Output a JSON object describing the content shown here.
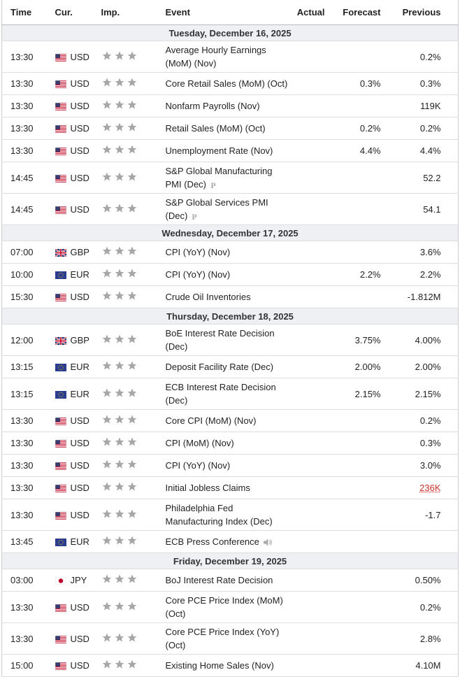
{
  "header": {
    "columns": [
      "Time",
      "Cur.",
      "Imp.",
      "Event",
      "Actual",
      "Forecast",
      "Previous"
    ]
  },
  "sections": [
    {
      "date": "Tuesday, December 16, 2025",
      "rows": [
        {
          "time": "13:30",
          "currency": "USD",
          "event": "Average Hourly Earnings (MoM) (Nov)",
          "actual": null,
          "forecast": null,
          "previous": "0.2%"
        },
        {
          "time": "13:30",
          "currency": "USD",
          "event": "Core Retail Sales (MoM) (Oct)",
          "actual": null,
          "forecast": "0.3%",
          "previous": "0.3%"
        },
        {
          "time": "13:30",
          "currency": "USD",
          "event": "Nonfarm Payrolls (Nov)",
          "actual": null,
          "forecast": null,
          "previous": "119K"
        },
        {
          "time": "13:30",
          "currency": "USD",
          "event": "Retail Sales (MoM) (Oct)",
          "actual": null,
          "forecast": "0.2%",
          "previous": "0.2%"
        },
        {
          "time": "13:30",
          "currency": "USD",
          "event": "Unemployment Rate (Nov)",
          "actual": null,
          "forecast": "4.4%",
          "previous": "4.4%"
        },
        {
          "time": "14:45",
          "currency": "USD",
          "event": "S&P Global Manufacturing PMI (Dec)",
          "actual": null,
          "forecast": null,
          "previous": "52.2",
          "preliminary": true
        },
        {
          "time": "14:45",
          "currency": "USD",
          "event": "S&P Global Services PMI (Dec)",
          "actual": null,
          "forecast": null,
          "previous": "54.1",
          "preliminary": true
        }
      ]
    },
    {
      "date": "Wednesday, December 17, 2025",
      "rows": [
        {
          "time": "07:00",
          "currency": "GBP",
          "event": "CPI (YoY) (Nov)",
          "actual": null,
          "forecast": null,
          "previous": "3.6%"
        },
        {
          "time": "10:00",
          "currency": "EUR",
          "event": "CPI (YoY) (Nov)",
          "actual": null,
          "forecast": "2.2%",
          "previous": "2.2%"
        },
        {
          "time": "15:30",
          "currency": "USD",
          "event": "Crude Oil Inventories",
          "actual": null,
          "forecast": null,
          "previous": "-1.812M"
        }
      ]
    },
    {
      "date": "Thursday, December 18, 2025",
      "rows": [
        {
          "time": "12:00",
          "currency": "GBP",
          "event": "BoE Interest Rate Decision (Dec)",
          "actual": null,
          "forecast": "3.75%",
          "previous": "4.00%"
        },
        {
          "time": "13:15",
          "currency": "EUR",
          "event": "Deposit Facility Rate (Dec)",
          "actual": null,
          "forecast": "2.00%",
          "previous": "2.00%"
        },
        {
          "time": "13:15",
          "currency": "EUR",
          "event": "ECB Interest Rate Decision (Dec)",
          "actual": null,
          "forecast": "2.15%",
          "previous": "2.15%"
        },
        {
          "time": "13:30",
          "currency": "USD",
          "event": "Core CPI (MoM) (Nov)",
          "actual": null,
          "forecast": null,
          "previous": "0.2%"
        },
        {
          "time": "13:30",
          "currency": "USD",
          "event": "CPI (MoM) (Nov)",
          "actual": null,
          "forecast": null,
          "previous": "0.3%"
        },
        {
          "time": "13:30",
          "currency": "USD",
          "event": "CPI (YoY) (Nov)",
          "actual": null,
          "forecast": null,
          "previous": "3.0%"
        },
        {
          "time": "13:30",
          "currency": "USD",
          "event": "Initial Jobless Claims",
          "actual": null,
          "forecast": null,
          "previous": "236K",
          "revised": true
        },
        {
          "time": "13:30",
          "currency": "USD",
          "event": "Philadelphia Fed Manufacturing Index (Dec)",
          "actual": null,
          "forecast": null,
          "previous": "-1.7"
        },
        {
          "time": "13:45",
          "currency": "EUR",
          "event": "ECB Press Conference",
          "actual": null,
          "forecast": null,
          "previous": null,
          "speech": true
        }
      ]
    },
    {
      "date": "Friday, December 19, 2025",
      "rows": [
        {
          "time": "03:00",
          "currency": "JPY",
          "event": "BoJ Interest Rate Decision",
          "actual": null,
          "forecast": null,
          "previous": "0.50%"
        },
        {
          "time": "13:30",
          "currency": "USD",
          "event": "Core PCE Price Index (MoM) (Oct)",
          "actual": null,
          "forecast": null,
          "previous": "0.2%"
        },
        {
          "time": "13:30",
          "currency": "USD",
          "event": "Core PCE Price Index (YoY) (Oct)",
          "actual": null,
          "forecast": null,
          "previous": "2.8%"
        },
        {
          "time": "15:00",
          "currency": "USD",
          "event": "Existing Home Sales (Nov)",
          "actual": null,
          "forecast": null,
          "previous": "4.10M"
        }
      ]
    }
  ]
}
